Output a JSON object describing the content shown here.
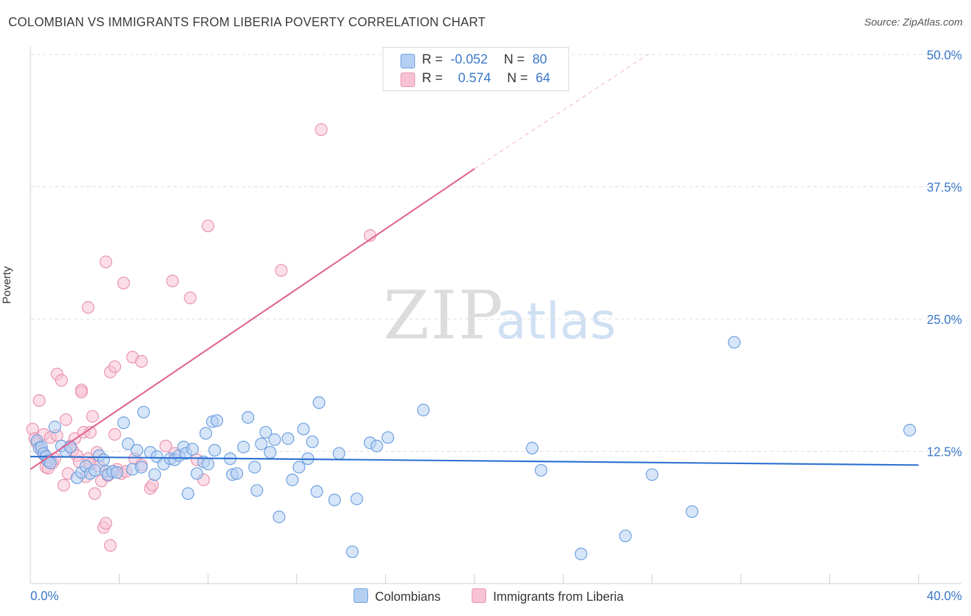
{
  "title": "COLOMBIAN VS IMMIGRANTS FROM LIBERIA POVERTY CORRELATION CHART",
  "source": "Source: ZipAtlas.com",
  "watermark": {
    "zip": "ZIP",
    "atlas": "atlas"
  },
  "colors": {
    "blue_fill": "#b5cff2",
    "blue_stroke": "#6b9ee0",
    "blue_line": "#2a6fd1",
    "pink_fill": "#f7c3d4",
    "pink_stroke": "#e990ae",
    "pink_line": "#e06490",
    "tick_label": "#3a78c9",
    "grid": "#dddddd"
  },
  "legend_top": {
    "items": [
      {
        "r_label": "R =",
        "r_value": "-0.052",
        "n_label": "N =",
        "n_value": "80",
        "color": "blue"
      },
      {
        "r_label": "R =",
        "r_value": "0.574",
        "n_label": "N =",
        "n_value": "64",
        "color": "pink"
      }
    ]
  },
  "legend_bottom": {
    "items": [
      "Colombians",
      "Immigrants from Liberia"
    ]
  },
  "chart_data": {
    "type": "scatter",
    "ylabel": "Poverty",
    "xlim": [
      0,
      40
    ],
    "ylim": [
      0,
      50
    ],
    "x_tick_labels": [
      "0.0%",
      "40.0%"
    ],
    "y_ticks": [
      12.5,
      25.0,
      37.5,
      50.0
    ],
    "y_tick_labels": [
      "12.5%",
      "25.0%",
      "37.5%",
      "50.0%"
    ],
    "grid": true,
    "series": [
      {
        "name": "Colombians",
        "r": -0.052,
        "n": 80,
        "trend": {
          "x": [
            0,
            40
          ],
          "y": [
            12.0,
            11.2
          ]
        },
        "points": [
          [
            0.3,
            13.5
          ],
          [
            0.4,
            12.8
          ],
          [
            0.5,
            12.9
          ],
          [
            0.6,
            12.3
          ],
          [
            0.7,
            12.0
          ],
          [
            0.8,
            11.6
          ],
          [
            0.9,
            11.4
          ],
          [
            1.1,
            14.8
          ],
          [
            1.4,
            13.0
          ],
          [
            1.6,
            12.5
          ],
          [
            1.8,
            12.9
          ],
          [
            2.1,
            10.0
          ],
          [
            2.3,
            10.5
          ],
          [
            2.5,
            11.1
          ],
          [
            2.7,
            10.4
          ],
          [
            2.9,
            10.7
          ],
          [
            3.1,
            12.1
          ],
          [
            3.3,
            11.7
          ],
          [
            3.4,
            10.6
          ],
          [
            3.5,
            10.3
          ],
          [
            3.7,
            10.6
          ],
          [
            3.9,
            10.5
          ],
          [
            4.2,
            15.2
          ],
          [
            4.4,
            13.2
          ],
          [
            4.6,
            10.8
          ],
          [
            4.8,
            12.6
          ],
          [
            5.0,
            11.0
          ],
          [
            5.1,
            16.2
          ],
          [
            5.4,
            12.4
          ],
          [
            5.6,
            10.3
          ],
          [
            5.7,
            12.0
          ],
          [
            6.0,
            11.3
          ],
          [
            6.3,
            11.8
          ],
          [
            6.5,
            11.7
          ],
          [
            6.7,
            12.1
          ],
          [
            6.9,
            12.9
          ],
          [
            7.0,
            12.3
          ],
          [
            7.1,
            8.5
          ],
          [
            7.3,
            12.7
          ],
          [
            7.5,
            10.4
          ],
          [
            7.8,
            11.5
          ],
          [
            7.9,
            14.2
          ],
          [
            8.0,
            11.3
          ],
          [
            8.3,
            12.6
          ],
          [
            8.2,
            15.3
          ],
          [
            8.4,
            15.4
          ],
          [
            9.0,
            11.8
          ],
          [
            9.1,
            10.3
          ],
          [
            9.3,
            10.4
          ],
          [
            9.6,
            12.9
          ],
          [
            9.8,
            15.7
          ],
          [
            10.1,
            11.0
          ],
          [
            10.2,
            8.8
          ],
          [
            10.4,
            13.2
          ],
          [
            10.6,
            14.3
          ],
          [
            10.8,
            12.4
          ],
          [
            11.0,
            13.6
          ],
          [
            11.2,
            6.3
          ],
          [
            11.6,
            13.7
          ],
          [
            11.8,
            9.8
          ],
          [
            12.1,
            11.0
          ],
          [
            12.3,
            14.6
          ],
          [
            12.5,
            11.8
          ],
          [
            12.7,
            13.4
          ],
          [
            12.9,
            8.7
          ],
          [
            13.0,
            17.1
          ],
          [
            13.7,
            7.9
          ],
          [
            13.9,
            12.3
          ],
          [
            14.5,
            3.0
          ],
          [
            14.7,
            8.0
          ],
          [
            15.3,
            13.3
          ],
          [
            15.6,
            13.0
          ],
          [
            16.1,
            13.8
          ],
          [
            17.7,
            16.4
          ],
          [
            22.6,
            12.8
          ],
          [
            23.0,
            10.7
          ],
          [
            24.8,
            2.8
          ],
          [
            26.8,
            4.5
          ],
          [
            28.0,
            10.3
          ],
          [
            29.8,
            6.8
          ],
          [
            31.7,
            22.8
          ],
          [
            39.6,
            14.5
          ]
        ]
      },
      {
        "name": "Immigrants from Liberia",
        "r": 0.574,
        "n": 64,
        "trend": {
          "x": [
            0,
            20
          ],
          "y": [
            10.8,
            39.2
          ]
        },
        "trend_extended": {
          "x": [
            20,
            27.8
          ],
          "y": [
            39.2,
            50.0
          ]
        },
        "points": [
          [
            0.1,
            14.6
          ],
          [
            0.2,
            13.7
          ],
          [
            0.3,
            13.3
          ],
          [
            0.4,
            17.3
          ],
          [
            0.5,
            12.6
          ],
          [
            0.6,
            14.1
          ],
          [
            0.6,
            12.2
          ],
          [
            0.7,
            11.0
          ],
          [
            0.8,
            10.9
          ],
          [
            0.9,
            13.8
          ],
          [
            1.0,
            11.4
          ],
          [
            1.1,
            11.8
          ],
          [
            1.2,
            14.0
          ],
          [
            1.2,
            19.8
          ],
          [
            1.4,
            19.2
          ],
          [
            1.5,
            9.3
          ],
          [
            1.6,
            15.5
          ],
          [
            1.7,
            10.4
          ],
          [
            1.8,
            13.0
          ],
          [
            1.9,
            12.6
          ],
          [
            2.0,
            13.7
          ],
          [
            2.1,
            12.1
          ],
          [
            2.2,
            11.5
          ],
          [
            2.3,
            18.3
          ],
          [
            2.3,
            18.1
          ],
          [
            2.4,
            14.3
          ],
          [
            2.6,
            11.8
          ],
          [
            2.7,
            11.3
          ],
          [
            2.6,
            26.1
          ],
          [
            2.7,
            14.3
          ],
          [
            2.8,
            15.8
          ],
          [
            2.9,
            8.5
          ],
          [
            3.0,
            12.4
          ],
          [
            3.1,
            11.1
          ],
          [
            3.2,
            9.7
          ],
          [
            3.3,
            5.3
          ],
          [
            3.4,
            5.7
          ],
          [
            3.5,
            10.2
          ],
          [
            3.4,
            30.4
          ],
          [
            3.6,
            3.6
          ],
          [
            3.6,
            20.0
          ],
          [
            3.8,
            20.5
          ],
          [
            3.8,
            14.1
          ],
          [
            3.9,
            10.8
          ],
          [
            4.1,
            10.4
          ],
          [
            4.2,
            28.4
          ],
          [
            4.3,
            10.6
          ],
          [
            4.6,
            21.4
          ],
          [
            4.7,
            11.8
          ],
          [
            5.0,
            11.2
          ],
          [
            5.0,
            21.0
          ],
          [
            5.4,
            9.0
          ],
          [
            5.5,
            9.3
          ],
          [
            6.1,
            13.0
          ],
          [
            6.4,
            28.6
          ],
          [
            6.5,
            12.3
          ],
          [
            7.2,
            27.0
          ],
          [
            7.5,
            11.7
          ],
          [
            7.8,
            9.8
          ],
          [
            8.0,
            33.8
          ],
          [
            11.3,
            29.6
          ],
          [
            13.1,
            42.9
          ],
          [
            15.3,
            32.9
          ],
          [
            2.5,
            10.1
          ]
        ]
      }
    ]
  }
}
